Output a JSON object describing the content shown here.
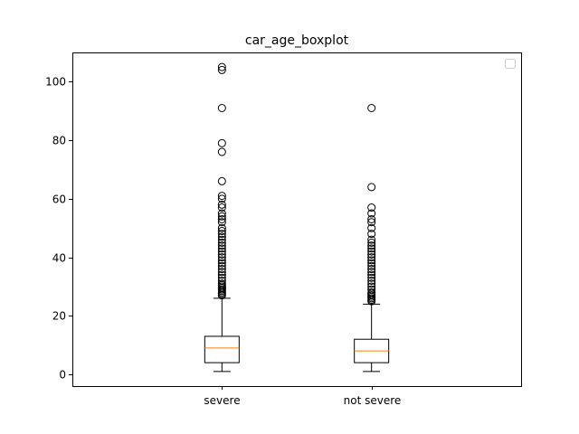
{
  "chart_data": {
    "type": "boxplot",
    "title": "car_age_boxplot",
    "xlabel": "",
    "ylabel": "",
    "categories": [
      "severe",
      "not severe"
    ],
    "ylim": [
      -4,
      110
    ],
    "yticks": [
      0,
      20,
      40,
      60,
      80,
      100
    ],
    "grid": false,
    "legend": "top-right, empty",
    "colors": {
      "box": "#000000",
      "median": "#ff7f0e",
      "flier": "#000000"
    },
    "series": [
      {
        "whisker_low": 1,
        "q1": 4,
        "median": 9,
        "q3": 13,
        "whisker_high": 26,
        "outliers": [
          27,
          27.5,
          28,
          28.5,
          29,
          29.5,
          30,
          30.5,
          31,
          32,
          33,
          34,
          35,
          36,
          37,
          38,
          39,
          40,
          41,
          42,
          43,
          44,
          45,
          46,
          47,
          48,
          49,
          50,
          52,
          53,
          54,
          55,
          57,
          58,
          60,
          61,
          66,
          76,
          79,
          91,
          104,
          105
        ]
      },
      {
        "whisker_low": 1,
        "q1": 4,
        "median": 8,
        "q3": 12,
        "whisker_high": 24,
        "outliers": [
          25,
          25.5,
          26,
          26.5,
          27,
          27.5,
          28,
          29,
          30,
          31,
          32,
          33,
          34,
          35,
          36,
          37,
          38,
          39,
          40,
          41,
          42,
          43,
          44,
          45,
          46,
          48,
          50,
          52,
          53,
          55,
          57,
          64,
          91
        ]
      }
    ]
  }
}
